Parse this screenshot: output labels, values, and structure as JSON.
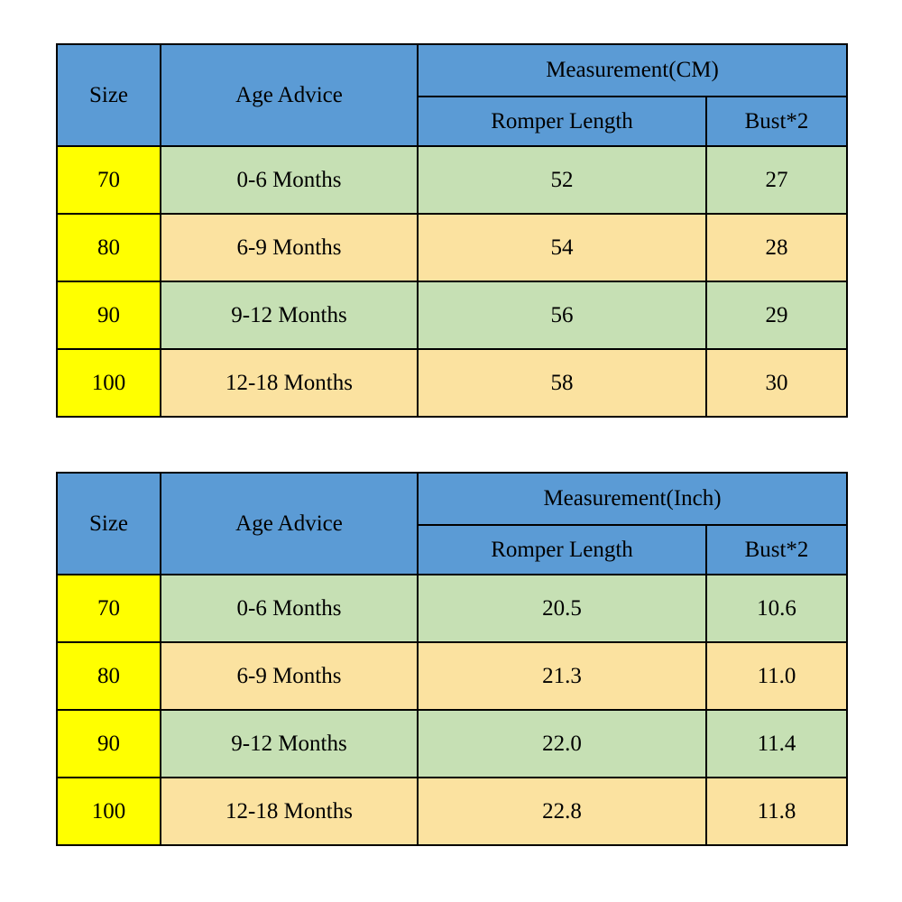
{
  "colors": {
    "header_blue": "#5B9BD5",
    "size_column_yellow": "#FFFF00",
    "row_green": "#C6E0B4",
    "row_cream": "#FBE2A0",
    "border": "#000000",
    "background": "#FFFFFF"
  },
  "chart_data": [
    {
      "type": "table",
      "title": "Measurement(CM)",
      "header": {
        "size": "Size",
        "age_advice": "Age Advice",
        "measurement": "Measurement(CM)",
        "sub_col1": "Romper Length",
        "sub_col2": "Bust*2"
      },
      "rows": [
        [
          "70",
          "0-6 Months",
          "52",
          "27"
        ],
        [
          "80",
          "6-9 Months",
          "54",
          "28"
        ],
        [
          "90",
          "9-12 Months",
          "56",
          "29"
        ],
        [
          "100",
          "12-18 Months",
          "58",
          "30"
        ]
      ]
    },
    {
      "type": "table",
      "title": "Measurement(Inch)",
      "header": {
        "size": "Size",
        "age_advice": "Age Advice",
        "measurement": "Measurement(Inch)",
        "sub_col1": "Romper Length",
        "sub_col2": "Bust*2"
      },
      "rows": [
        [
          "70",
          "0-6 Months",
          "20.5",
          "10.6"
        ],
        [
          "80",
          "6-9 Months",
          "21.3",
          "11.0"
        ],
        [
          "90",
          "9-12 Months",
          "22.0",
          "11.4"
        ],
        [
          "100",
          "12-18 Months",
          "22.8",
          "11.8"
        ]
      ]
    }
  ]
}
